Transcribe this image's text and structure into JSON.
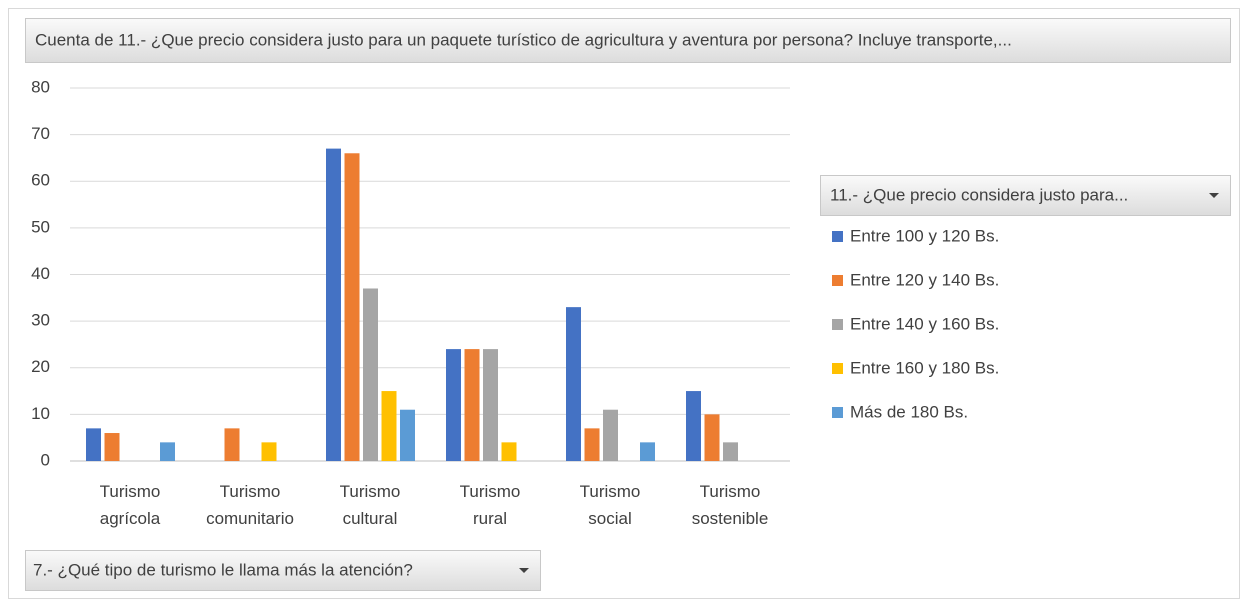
{
  "chart_data": {
    "type": "bar",
    "title": "Cuenta de 11.- ¿Que precio considera justo para un paquete turístico de agricultura y aventura por persona? Incluye transporte,...",
    "legend_title": "11.- ¿Que precio considera justo para...",
    "x_field": "7.- ¿Qué tipo de turismo le llama más la atención?",
    "categories": [
      "Turismo agrícola",
      "Turismo comunitario",
      "Turismo cultural",
      "Turismo rural",
      "Turismo social",
      "Turismo sostenible"
    ],
    "series": [
      {
        "name": "Entre 100 y 120 Bs.",
        "color": "#4472c4",
        "values": [
          7,
          null,
          67,
          24,
          33,
          15
        ]
      },
      {
        "name": "Entre 120 y 140 Bs.",
        "color": "#ed7d31",
        "values": [
          6,
          7,
          66,
          24,
          7,
          10
        ]
      },
      {
        "name": "Entre 140 y 160 Bs.",
        "color": "#a5a5a5",
        "values": [
          null,
          null,
          37,
          24,
          11,
          4
        ]
      },
      {
        "name": "Entre 160 y 180 Bs.",
        "color": "#ffc000",
        "values": [
          null,
          4,
          15,
          4,
          null,
          null
        ]
      },
      {
        "name": "Más de 180 Bs.",
        "color": "#5b9bd5",
        "values": [
          4,
          null,
          11,
          null,
          4,
          null
        ]
      }
    ],
    "ylim": [
      0,
      80
    ],
    "yticks": [
      0,
      10,
      20,
      30,
      40,
      50,
      60,
      70,
      80
    ],
    "grid": true,
    "legend": "right"
  }
}
